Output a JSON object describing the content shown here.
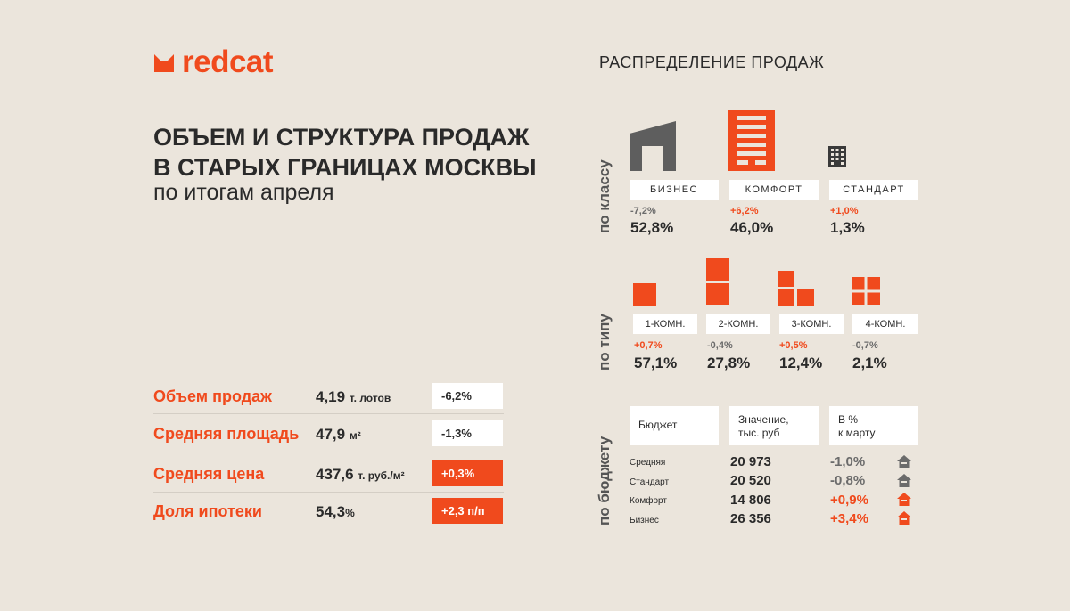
{
  "brand": {
    "name": "redcat",
    "color": "#f04a1d"
  },
  "header": {
    "title_line1": "ОБЪЕМ И СТРУКТУРА ПРОДАЖ",
    "title_line2": "В СТАРЫХ ГРАНИЦАХ МОСКВЫ",
    "subtitle": "по итогам апреля"
  },
  "kpis": [
    {
      "label": "Объем продаж",
      "value": "4,19",
      "unit": "т. лотов",
      "change": "-6,2%",
      "positive": false
    },
    {
      "label": "Средняя площадь",
      "value": "47,9",
      "unit": "м²",
      "change": "-1,3%",
      "positive": false
    },
    {
      "label": "Средняя цена",
      "value": "437,6",
      "unit": "т. руб./м²",
      "change": "+0,3%",
      "positive": true
    },
    {
      "label": "Доля ипотеки",
      "value": "54,3",
      "unit": "%",
      "change": "+2,3 п/п",
      "positive": true
    }
  ],
  "distribution": {
    "title": "РАСПРЕДЕЛЕНИЕ ПРОДАЖ",
    "by_class": {
      "label": "по классу",
      "items": [
        {
          "name": "БИЗНЕС",
          "change": "-7,2%",
          "share": "52,8%",
          "icon": "business-building-icon"
        },
        {
          "name": "КОМФОРТ",
          "change": "+6,2%",
          "share": "46,0%",
          "icon": "comfort-building-icon"
        },
        {
          "name": "СТАНДАРТ",
          "change": "+1,0%",
          "share": "1,3%",
          "icon": "standard-building-icon"
        }
      ]
    },
    "by_type": {
      "label": "по типу",
      "items": [
        {
          "name": "1-КОМН.",
          "change": "+0,7%",
          "share": "57,1%"
        },
        {
          "name": "2-КОМН.",
          "change": "-0,4%",
          "share": "27,8%"
        },
        {
          "name": "3-КОМН.",
          "change": "+0,5%",
          "share": "12,4%"
        },
        {
          "name": "4-КОМН.",
          "change": "-0,7%",
          "share": "2,1%"
        }
      ]
    },
    "by_budget": {
      "label": "по бюджету",
      "col_budget": "Бюджет",
      "col_value_1": "Значение,",
      "col_value_2": "тыс. руб",
      "col_change_1": "В %",
      "col_change_2": "к марту",
      "rows": [
        {
          "name": "Средняя",
          "value": "20 973",
          "change": "-1,0%",
          "positive": false
        },
        {
          "name": "Стандарт",
          "value": "20 520",
          "change": "-0,8%",
          "positive": false
        },
        {
          "name": "Комфорт",
          "value": "14 806",
          "change": "+0,9%",
          "positive": true
        },
        {
          "name": "Бизнес",
          "value": "26 356",
          "change": "+3,4%",
          "positive": true
        }
      ]
    }
  },
  "colors": {
    "accent": "#f04a1d",
    "negative": "#6b6b6b",
    "background": "#ebe5dc"
  }
}
